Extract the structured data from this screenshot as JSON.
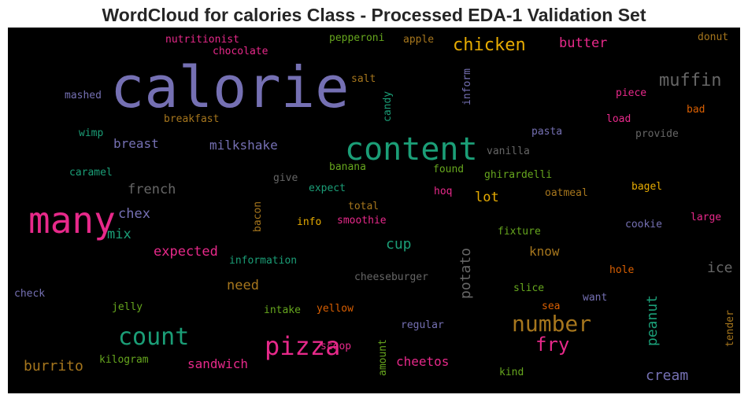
{
  "title": "WordCloud for calories Class - Processed EDA-1 Validation Set",
  "colors": {
    "purple": "#7570b3",
    "green": "#1b9e77",
    "orange": "#d95f02",
    "pink": "#e7298a",
    "lime": "#66a61e",
    "gold": "#e6ab02",
    "brown": "#a6761d",
    "gray": "#666666"
  },
  "words": [
    {
      "text": "calorie",
      "color": "purple"
    },
    {
      "text": "content",
      "color": "green"
    },
    {
      "text": "many",
      "color": "pink"
    },
    {
      "text": "pizza",
      "color": "pink"
    },
    {
      "text": "number",
      "color": "brown"
    },
    {
      "text": "count",
      "color": "green"
    },
    {
      "text": "muffin",
      "color": "gray"
    },
    {
      "text": "chicken",
      "color": "gold"
    },
    {
      "text": "fry",
      "color": "pink"
    },
    {
      "text": "burrito",
      "color": "brown"
    },
    {
      "text": "cream",
      "color": "purple"
    },
    {
      "text": "sandwich",
      "color": "pink"
    },
    {
      "text": "cheetos",
      "color": "pink"
    },
    {
      "text": "potato",
      "color": "gray"
    },
    {
      "text": "peanut",
      "color": "green"
    },
    {
      "text": "know",
      "color": "brown"
    },
    {
      "text": "ice",
      "color": "gray"
    },
    {
      "text": "cup",
      "color": "green"
    },
    {
      "text": "need",
      "color": "brown"
    },
    {
      "text": "expected",
      "color": "pink"
    },
    {
      "text": "mix",
      "color": "green"
    },
    {
      "text": "chex",
      "color": "purple"
    },
    {
      "text": "french",
      "color": "gray"
    },
    {
      "text": "breast",
      "color": "purple"
    },
    {
      "text": "milkshake",
      "color": "purple"
    },
    {
      "text": "butter",
      "color": "pink"
    },
    {
      "text": "lot",
      "color": "gold"
    },
    {
      "text": "nutritionist",
      "color": "pink"
    },
    {
      "text": "chocolate",
      "color": "pink"
    },
    {
      "text": "pepperoni",
      "color": "lime"
    },
    {
      "text": "apple",
      "color": "brown"
    },
    {
      "text": "donut",
      "color": "brown"
    },
    {
      "text": "mashed",
      "color": "purple"
    },
    {
      "text": "salt",
      "color": "brown"
    },
    {
      "text": "candy",
      "color": "green"
    },
    {
      "text": "inform",
      "color": "purple"
    },
    {
      "text": "piece",
      "color": "pink"
    },
    {
      "text": "bad",
      "color": "orange"
    },
    {
      "text": "breakfast",
      "color": "brown"
    },
    {
      "text": "pasta",
      "color": "purple"
    },
    {
      "text": "load",
      "color": "pink"
    },
    {
      "text": "provide",
      "color": "gray"
    },
    {
      "text": "wimp",
      "color": "green"
    },
    {
      "text": "vanilla",
      "color": "gray"
    },
    {
      "text": "caramel",
      "color": "green"
    },
    {
      "text": "banana",
      "color": "lime"
    },
    {
      "text": "give",
      "color": "gray"
    },
    {
      "text": "found",
      "color": "lime"
    },
    {
      "text": "ghirardelli",
      "color": "lime"
    },
    {
      "text": "expect",
      "color": "green"
    },
    {
      "text": "bagel",
      "color": "gold"
    },
    {
      "text": "hoq",
      "color": "pink"
    },
    {
      "text": "oatmeal",
      "color": "brown"
    },
    {
      "text": "total",
      "color": "brown"
    },
    {
      "text": "bacon",
      "color": "brown"
    },
    {
      "text": "large",
      "color": "pink"
    },
    {
      "text": "info",
      "color": "gold"
    },
    {
      "text": "smoothie",
      "color": "pink"
    },
    {
      "text": "cookie",
      "color": "purple"
    },
    {
      "text": "fixture",
      "color": "lime"
    },
    {
      "text": "information",
      "color": "green"
    },
    {
      "text": "hole",
      "color": "orange"
    },
    {
      "text": "cheeseburger",
      "color": "gray"
    },
    {
      "text": "check",
      "color": "purple"
    },
    {
      "text": "slice",
      "color": "lime"
    },
    {
      "text": "want",
      "color": "purple"
    },
    {
      "text": "jelly",
      "color": "lime"
    },
    {
      "text": "intake",
      "color": "lime"
    },
    {
      "text": "yellow",
      "color": "orange"
    },
    {
      "text": "sea",
      "color": "orange"
    },
    {
      "text": "tender",
      "color": "brown"
    },
    {
      "text": "regular",
      "color": "purple"
    },
    {
      "text": "amount",
      "color": "lime"
    },
    {
      "text": "scoop",
      "color": "pink"
    },
    {
      "text": "kilogram",
      "color": "lime"
    },
    {
      "text": "kind",
      "color": "lime"
    }
  ]
}
